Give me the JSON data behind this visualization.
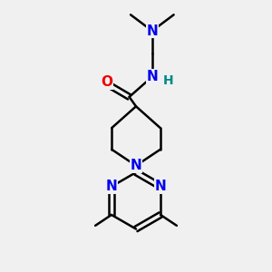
{
  "bg_color": "#f0f0f0",
  "bond_color": "#000000",
  "N_color": "#0000ee",
  "O_color": "#ee0000",
  "H_color": "#008888",
  "line_width": 1.8,
  "font_size": 11,
  "fig_size": [
    3.0,
    3.0
  ],
  "dpi": 100,
  "xlim": [
    0,
    10
  ],
  "ylim": [
    0,
    10
  ]
}
